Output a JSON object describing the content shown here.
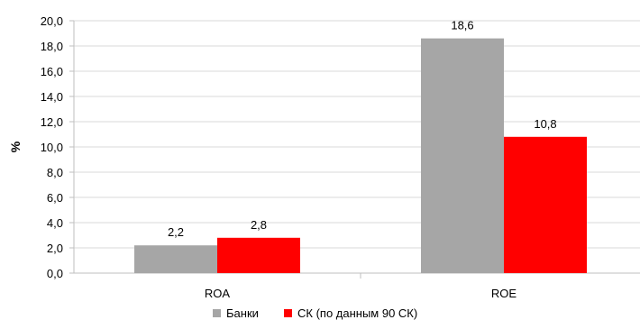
{
  "chart_data": {
    "type": "bar",
    "title": "",
    "xlabel": "",
    "ylabel": "%",
    "ylim": [
      0,
      20
    ],
    "ytick_step": 2,
    "ytick_labels": [
      "0,0",
      "2,0",
      "4,0",
      "6,0",
      "8,0",
      "10,0",
      "12,0",
      "14,0",
      "16,0",
      "18,0",
      "20,0"
    ],
    "categories": [
      "ROA",
      "ROE"
    ],
    "series": [
      {
        "name": "Банки",
        "color": "#a6a6a6",
        "values": [
          2.2,
          18.6
        ],
        "labels": [
          "2,2",
          "18,6"
        ]
      },
      {
        "name": "СК (по данным 90 СК)",
        "color": "#ff0000",
        "values": [
          2.8,
          10.8
        ],
        "labels": [
          "2,8",
          "10,8"
        ]
      }
    ],
    "grid": true,
    "gridline_color": "#d9d9d9",
    "legend_position": "bottom"
  }
}
